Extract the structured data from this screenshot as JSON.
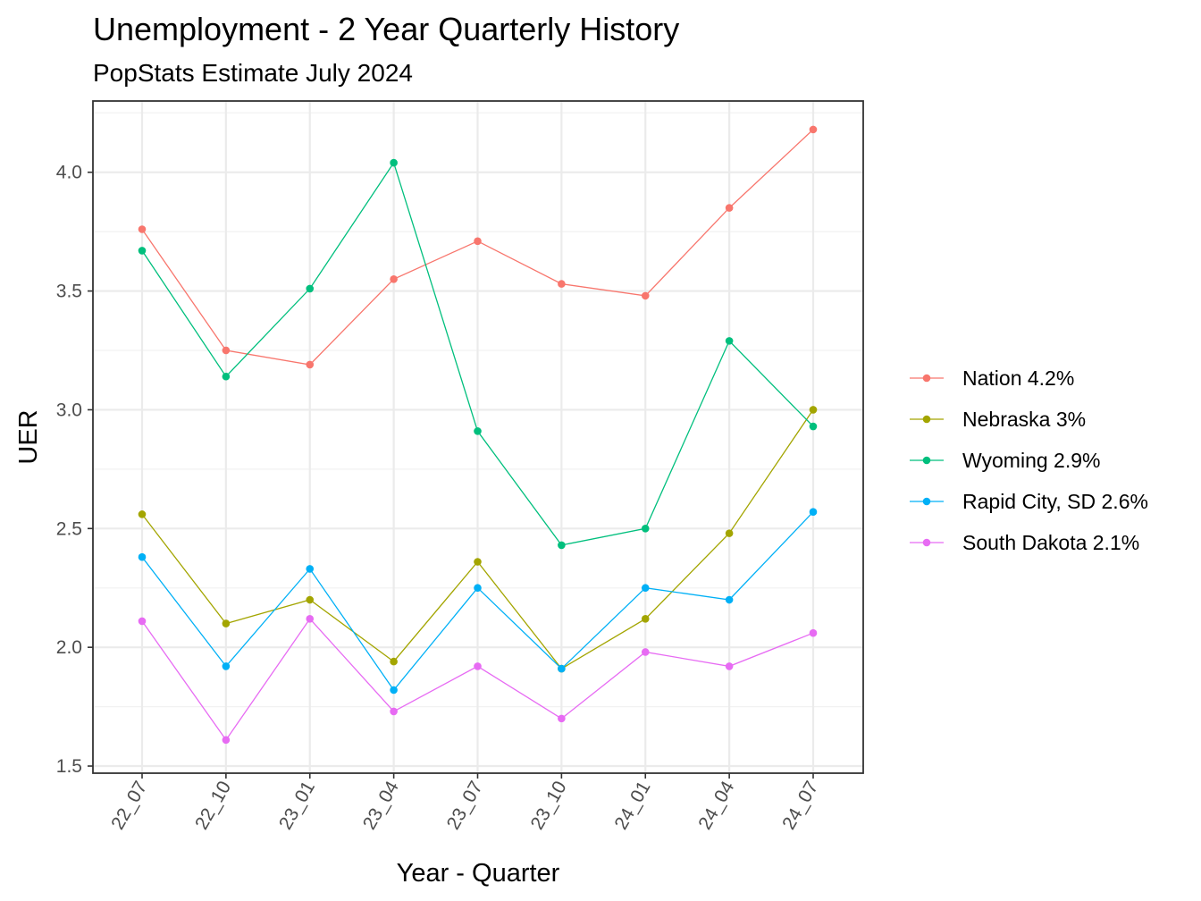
{
  "chart_data": {
    "type": "line",
    "title": "Unemployment - 2 Year Quarterly History",
    "subtitle": "PopStats Estimate July 2024",
    "xlabel": "Year - Quarter",
    "ylabel": "UER",
    "categories": [
      "22_07",
      "22_10",
      "23_01",
      "23_04",
      "23_07",
      "23_10",
      "24_01",
      "24_04",
      "24_07"
    ],
    "ylim": [
      1.47,
      4.3
    ],
    "yticks": [
      1.5,
      2.0,
      2.5,
      3.0,
      3.5,
      4.0
    ],
    "ytick_labels": [
      "1.5",
      "2.0",
      "2.5",
      "3.0",
      "3.5",
      "4.0"
    ],
    "grid": true,
    "legend_position": "right",
    "series": [
      {
        "name": "Nation 4.2%",
        "color": "#F8766D",
        "values": [
          3.76,
          3.25,
          3.19,
          3.55,
          3.71,
          3.53,
          3.48,
          3.85,
          4.18
        ]
      },
      {
        "name": "Nebraska 3%",
        "color": "#A3A500",
        "values": [
          2.56,
          2.1,
          2.2,
          1.94,
          2.36,
          1.91,
          2.12,
          2.48,
          3.0
        ]
      },
      {
        "name": "Wyoming 2.9%",
        "color": "#00BF7D",
        "values": [
          3.67,
          3.14,
          3.51,
          4.04,
          2.91,
          2.43,
          2.5,
          3.29,
          2.93
        ]
      },
      {
        "name": "Rapid City, SD 2.6%",
        "color": "#00B0F6",
        "values": [
          2.38,
          1.92,
          2.33,
          1.82,
          2.25,
          1.91,
          2.25,
          2.2,
          2.57
        ]
      },
      {
        "name": "South Dakota 2.1%",
        "color": "#E76BF3",
        "values": [
          2.11,
          1.61,
          2.12,
          1.73,
          1.92,
          1.7,
          1.98,
          1.92,
          2.06
        ]
      }
    ]
  }
}
